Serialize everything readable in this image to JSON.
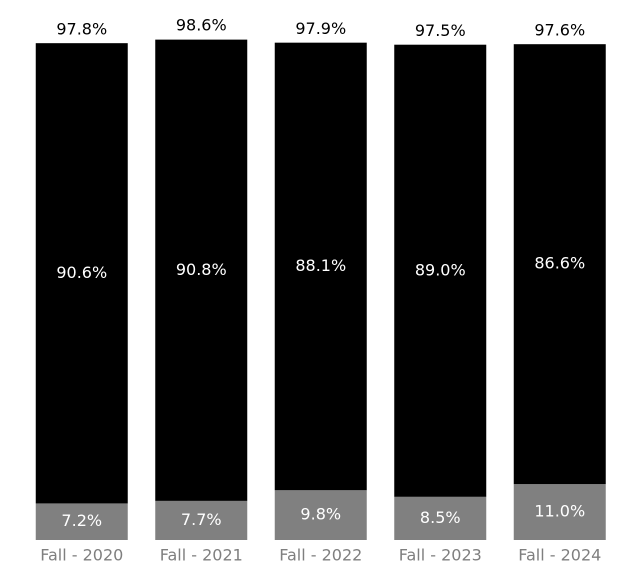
{
  "chart_data": {
    "type": "stacked_bar",
    "categories": [
      "Fall - 2020",
      "Fall - 2021",
      "Fall - 2022",
      "Fall - 2023",
      "Fall - 2024"
    ],
    "series": [
      {
        "color": "#808080",
        "values": [
          7.2,
          7.7,
          9.8,
          8.5,
          11.0
        ],
        "value_labels": [
          "7.2%",
          "7.7%",
          "9.8%",
          "8.5%",
          "11.0%"
        ]
      },
      {
        "color": "#000000",
        "values": [
          90.6,
          90.8,
          88.1,
          89.0,
          86.6
        ],
        "value_labels": [
          "90.6%",
          "90.8%",
          "88.1%",
          "89.0%",
          "86.6%"
        ]
      }
    ],
    "totals": {
      "values": [
        97.8,
        98.6,
        97.9,
        97.5,
        97.6
      ],
      "value_labels": [
        "97.8%",
        "98.6%",
        "97.9%",
        "97.5%",
        "97.6%"
      ]
    },
    "ylim": [
      0,
      100
    ]
  }
}
